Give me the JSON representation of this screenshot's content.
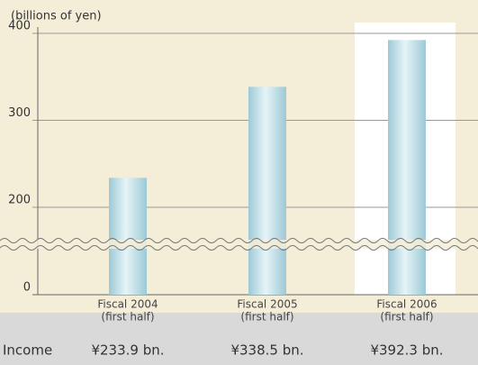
{
  "chart_data": {
    "type": "bar",
    "y_axis_label": "(billions of yen)",
    "categories": [
      [
        "Fiscal 2004",
        "(first half)"
      ],
      [
        "Fiscal 2005",
        "(first half)"
      ],
      [
        "Fiscal 2006",
        "(first half)"
      ]
    ],
    "values": [
      233.9,
      338.5,
      392.3
    ],
    "value_labels": [
      "¥233.9 bn.",
      "¥338.5 bn.",
      "¥392.3 bn."
    ],
    "row_label": "Income",
    "color": "#bcdde6",
    "ylim": [
      0,
      400
    ],
    "yticks": [
      0,
      200,
      300,
      400
    ],
    "broken_axis": true,
    "grid": true,
    "highlight": 2
  }
}
